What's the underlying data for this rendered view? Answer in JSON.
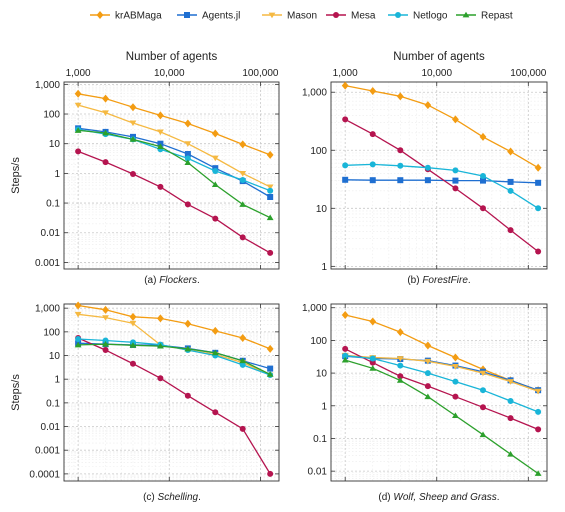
{
  "legend": [
    {
      "name": "krABMaga",
      "color": "#f39c12",
      "marker": "diamond"
    },
    {
      "name": "Agents.jl",
      "color": "#1f6fd1",
      "marker": "square"
    },
    {
      "name": "Mason",
      "color": "#f5b942",
      "marker": "triangle-down"
    },
    {
      "name": "Mesa",
      "color": "#b5144f",
      "marker": "circle"
    },
    {
      "name": "Netlogo",
      "color": "#19b5d8",
      "marker": "circle"
    },
    {
      "name": "Repast",
      "color": "#2ca02c",
      "marker": "triangle-up"
    }
  ],
  "chart_data": [
    {
      "type": "line",
      "caption_prefix": "(a) ",
      "caption_italic": "Flockers",
      "caption_suffix": ".",
      "xlabel": "Number of agents",
      "ylabel": "Steps/s",
      "x_scale": "log",
      "y_scale": "log",
      "xlim": [
        700,
        160000
      ],
      "ylim": [
        0.0006,
        1200
      ],
      "x_ticks": [
        1000,
        10000,
        100000
      ],
      "x_tick_labels": [
        "1,000",
        "10,000",
        "100,000"
      ],
      "y_ticks": [
        0.001,
        0.01,
        0.1,
        1,
        10,
        100,
        1000
      ],
      "y_tick_labels": [
        "0.001",
        "0.01",
        "0.1",
        "1",
        "10",
        "100",
        "1,000"
      ],
      "grid": true,
      "x": [
        1000,
        2000,
        4000,
        8000,
        16000,
        32000,
        64000,
        128000
      ],
      "series": [
        {
          "name": "krABMaga",
          "values": [
            480,
            330,
            170,
            90,
            48,
            22,
            9.5,
            4.2
          ]
        },
        {
          "name": "Agents.jl",
          "values": [
            33,
            25,
            17,
            10,
            4.5,
            1.5,
            0.55,
            0.16
          ]
        },
        {
          "name": "Mason",
          "values": [
            200,
            110,
            50,
            25,
            10,
            3.3,
            1.0,
            0.35
          ]
        },
        {
          "name": "Mesa",
          "values": [
            5.5,
            2.4,
            0.95,
            0.35,
            0.09,
            0.03,
            0.007,
            0.0021
          ]
        },
        {
          "name": "Netlogo",
          "values": [
            30,
            21,
            14,
            6.5,
            3.2,
            1.2,
            0.6,
            0.26
          ]
        },
        {
          "name": "Repast",
          "values": [
            28,
            23,
            14,
            8,
            2.3,
            0.42,
            0.09,
            0.032
          ]
        }
      ]
    },
    {
      "type": "line",
      "caption_prefix": "(b) ",
      "caption_italic": "ForestFire",
      "caption_suffix": ".",
      "xlabel": "Number of agents",
      "ylabel": "",
      "x_scale": "log",
      "y_scale": "log",
      "xlim": [
        700,
        160000
      ],
      "ylim": [
        0.9,
        1500
      ],
      "x_ticks": [
        1000,
        10000,
        100000
      ],
      "x_tick_labels": [
        "1,000",
        "10,000",
        "100,000"
      ],
      "y_ticks": [
        1,
        10,
        100,
        1000
      ],
      "y_tick_labels": [
        "1",
        "10",
        "100",
        "1,000"
      ],
      "grid": true,
      "x": [
        1000,
        2000,
        4000,
        8000,
        16000,
        32000,
        64000,
        128000
      ],
      "series": [
        {
          "name": "krABMaga",
          "values": [
            1300,
            1050,
            850,
            600,
            340,
            170,
            95,
            50
          ]
        },
        {
          "name": "Agents.jl",
          "values": [
            31,
            30.5,
            30.5,
            30.5,
            30,
            30,
            28.5,
            27.5
          ]
        },
        {
          "name": "Mesa",
          "values": [
            340,
            190,
            100,
            47,
            22,
            10,
            4.2,
            1.8
          ]
        },
        {
          "name": "Netlogo",
          "values": [
            55,
            57,
            54,
            50,
            45,
            36,
            20,
            10
          ]
        }
      ]
    },
    {
      "type": "line",
      "caption_prefix": "(c) ",
      "caption_italic": "Schelling",
      "caption_suffix": ".",
      "xlabel": "",
      "ylabel": "Steps/s",
      "x_scale": "log",
      "y_scale": "log",
      "xlim": [
        700,
        160000
      ],
      "ylim": [
        5e-05,
        1500
      ],
      "x_ticks": [
        1000,
        10000,
        100000
      ],
      "x_tick_labels": [],
      "y_ticks": [
        0.0001,
        0.001,
        0.01,
        0.1,
        1,
        10,
        100,
        1000
      ],
      "y_tick_labels": [
        "0.0001",
        "0.001",
        "0.01",
        "0.1",
        "1",
        "10",
        "100",
        "1,000"
      ],
      "grid": true,
      "x": [
        1000,
        2000,
        4000,
        8000,
        16000,
        32000,
        64000,
        128000
      ],
      "series": [
        {
          "name": "krABMaga",
          "values": [
            1300,
            850,
            430,
            370,
            220,
            110,
            55,
            19
          ]
        },
        {
          "name": "Agents.jl",
          "values": [
            33,
            30,
            28,
            27,
            20,
            13,
            6,
            2.8
          ]
        },
        {
          "name": "Mason",
          "values": [
            550,
            400,
            230,
            28,
            17,
            11,
            5,
            1.5
          ]
        },
        {
          "name": "Mesa",
          "values": [
            55,
            17,
            4.5,
            1.1,
            0.2,
            0.04,
            0.008,
            0.0001
          ]
        },
        {
          "name": "Netlogo",
          "values": [
            50,
            43,
            36,
            29,
            17,
            10,
            4,
            1.5
          ]
        },
        {
          "name": "Repast",
          "values": [
            28,
            30,
            27,
            25,
            19,
            13,
            6,
            1.6
          ]
        }
      ]
    },
    {
      "type": "line",
      "caption_prefix": "(d) ",
      "caption_italic": "Wolf, Sheep and Grass",
      "caption_suffix": ".",
      "xlabel": "",
      "ylabel": "",
      "x_scale": "log",
      "y_scale": "log",
      "xlim": [
        700,
        160000
      ],
      "ylim": [
        0.005,
        1300
      ],
      "x_ticks": [
        1000,
        10000,
        100000
      ],
      "x_tick_labels": [],
      "y_ticks": [
        0.01,
        0.1,
        1,
        10,
        100,
        1000
      ],
      "y_tick_labels": [
        "0.01",
        "0.1",
        "1",
        "10",
        "100",
        "1,000"
      ],
      "grid": true,
      "x": [
        1000,
        2000,
        4000,
        8000,
        16000,
        32000,
        64000,
        128000
      ],
      "series": [
        {
          "name": "krABMaga",
          "values": [
            600,
            380,
            180,
            70,
            30,
            13,
            6,
            3
          ]
        },
        {
          "name": "Agents.jl",
          "values": [
            33,
            28,
            27,
            24,
            17,
            11,
            6,
            3
          ]
        },
        {
          "name": "Mason",
          "values": [
            35,
            30,
            28,
            23,
            16,
            10,
            5.5,
            2.8
          ]
        },
        {
          "name": "Mesa",
          "values": [
            55,
            21,
            8,
            4,
            1.9,
            0.9,
            0.42,
            0.19
          ]
        },
        {
          "name": "Netlogo",
          "values": [
            34,
            28,
            17,
            10,
            5.5,
            3,
            1.4,
            0.65
          ]
        },
        {
          "name": "Repast",
          "values": [
            25,
            14,
            6,
            1.9,
            0.5,
            0.13,
            0.033,
            0.0085
          ]
        }
      ]
    }
  ]
}
